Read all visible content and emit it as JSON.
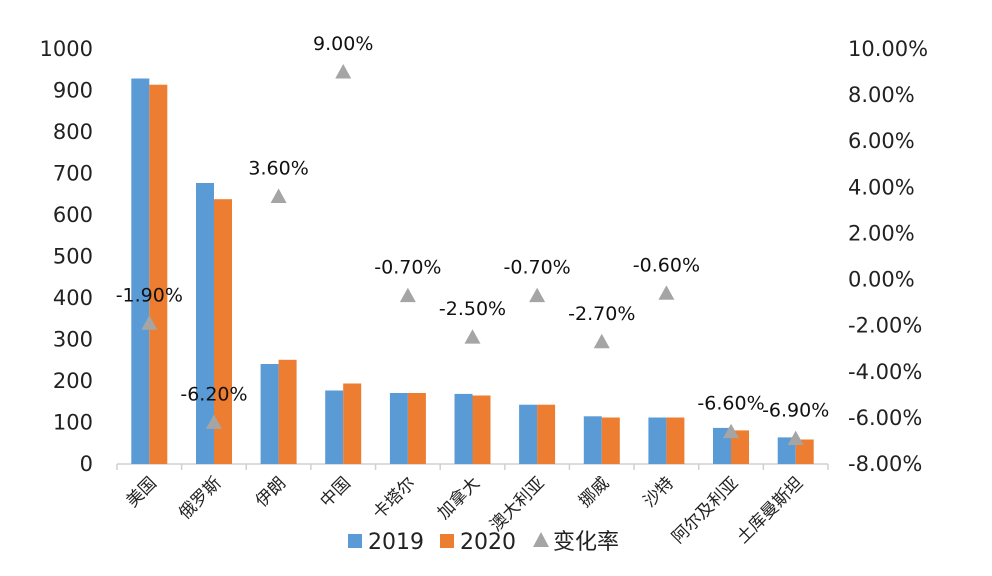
{
  "chart_data": {
    "type": "bar",
    "categories": [
      "美国",
      "俄罗斯",
      "伊朗",
      "中国",
      "卡塔尔",
      "加拿大",
      "澳大利亚",
      "挪威",
      "沙特",
      "阿尔及利亚",
      "土库曼斯坦"
    ],
    "series": [
      {
        "name": "2019",
        "type": "bar",
        "axis": "left",
        "color": "#5b9bd5",
        "values": [
          929,
          677,
          241,
          177,
          171,
          169,
          143,
          115,
          112,
          87,
          64
        ]
      },
      {
        "name": "2020",
        "type": "bar",
        "axis": "left",
        "color": "#ed7d31",
        "values": [
          914,
          638,
          251,
          194,
          171,
          165,
          143,
          112,
          112,
          81,
          59
        ]
      },
      {
        "name": "变化率",
        "type": "scatter",
        "marker": "triangle",
        "axis": "right",
        "color": "#a5a5a5",
        "values": [
          -1.9,
          -6.2,
          3.6,
          9.0,
          -0.7,
          -2.5,
          -0.7,
          -2.7,
          -0.6,
          -6.6,
          -6.9
        ],
        "labels": [
          "-1.90%",
          "-6.20%",
          "3.60%",
          "9.00%",
          "-0.70%",
          "-2.50%",
          "-0.70%",
          "-2.70%",
          "-0.60%",
          "-6.60%",
          "-6.90%"
        ]
      }
    ],
    "y_left": {
      "min": 0,
      "max": 1000,
      "ticks": [
        "0",
        "100",
        "200",
        "300",
        "400",
        "500",
        "600",
        "700",
        "800",
        "900",
        "1000"
      ]
    },
    "y_right": {
      "min": -8,
      "max": 10,
      "ticks": [
        "-8.00%",
        "-6.00%",
        "-4.00%",
        "-2.00%",
        "0.00%",
        "2.00%",
        "4.00%",
        "6.00%",
        "8.00%",
        "10.00%"
      ]
    },
    "grid": false,
    "legend": {
      "position": "bottom",
      "items": [
        "2019",
        "2020",
        "变化率"
      ]
    }
  }
}
